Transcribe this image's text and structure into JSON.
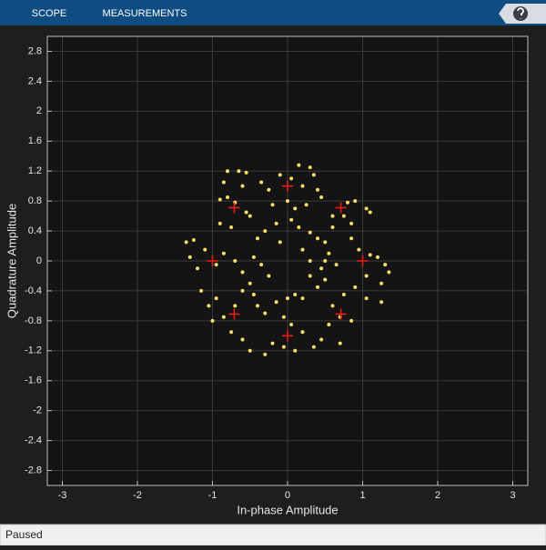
{
  "toolbar": {
    "tabs": [
      "SCOPE",
      "MEASUREMENTS"
    ]
  },
  "status": "Paused",
  "chart_data": {
    "type": "scatter",
    "xlabel": "In-phase Amplitude",
    "ylabel": "Quadrature Amplitude",
    "xlim": [
      -3.2,
      3.2
    ],
    "ylim": [
      -3,
      3
    ],
    "xticks": [
      -3,
      -2,
      -1,
      0,
      1,
      2,
      3
    ],
    "yticks": [
      -2.8,
      -2.4,
      -2,
      -1.6,
      -1.2,
      -0.8,
      -0.4,
      0,
      0.4,
      0.8,
      1.2,
      1.6,
      2,
      2.4,
      2.8
    ],
    "grid": true,
    "points": {
      "color": "#ffe066",
      "x": [
        -0.8,
        -0.65,
        -0.55,
        -0.85,
        -0.6,
        -0.9,
        -0.8,
        -0.7,
        -0.55,
        -0.9,
        -0.75,
        -0.35,
        -0.25,
        -0.1,
        0.05,
        0.15,
        0.3,
        0.35,
        0.2,
        0.4,
        0.45,
        0.25,
        0.1,
        0.05,
        0.15,
        0.3,
        0.4,
        0.5,
        0.55,
        0.5,
        0.45,
        0.5,
        0.4,
        0.6,
        0.75,
        0.8,
        0.9,
        1.05,
        1.1,
        0.85,
        0.85,
        0.95,
        1.1,
        1.2,
        1.3,
        1.35,
        1.05,
        1.25,
        0.9,
        0.75,
        1.05,
        1.25,
        0.6,
        0.7,
        0.85,
        0.55,
        0.45,
        0.7,
        0.35,
        0.2,
        0.1,
        -0.05,
        -0.2,
        -0.3,
        -0.5,
        -0.6,
        -0.75,
        -0.85,
        -1.0,
        -1.05,
        -0.95,
        -1.15,
        -1.2,
        -1.3,
        -1.35,
        -1.25,
        -1.1,
        -0.95,
        -0.85,
        -0.7,
        -0.6,
        -0.5,
        -0.45,
        -0.4,
        -0.3,
        -0.15,
        0.0,
        0.1,
        0.2,
        -0.05,
        0.05,
        -0.45,
        -0.4,
        -0.3,
        -0.15,
        0.0,
        -0.1,
        -0.5,
        -0.2,
        0.3,
        0.3,
        0.2,
        -0.25,
        -0.35,
        -0.6,
        -0.7,
        0.6,
        0.65
      ],
      "y": [
        1.2,
        1.2,
        1.18,
        1.05,
        1.0,
        0.82,
        0.85,
        0.78,
        0.65,
        0.5,
        0.45,
        1.05,
        0.95,
        1.15,
        1.1,
        1.28,
        1.25,
        1.15,
        1.0,
        0.95,
        0.85,
        0.75,
        0.7,
        0.55,
        0.45,
        0.38,
        0.3,
        0.25,
        0.1,
        0.0,
        -0.1,
        -0.25,
        -0.35,
        0.6,
        0.6,
        0.78,
        0.8,
        0.7,
        0.65,
        0.5,
        0.3,
        0.15,
        0.08,
        0.05,
        -0.05,
        -0.15,
        -0.2,
        -0.3,
        -0.35,
        -0.45,
        -0.5,
        -0.55,
        -0.6,
        -0.75,
        -0.8,
        -0.85,
        -1.05,
        -1.1,
        -1.15,
        -0.95,
        -1.2,
        -1.15,
        -1.1,
        -1.25,
        -1.2,
        -1.05,
        -0.95,
        -0.75,
        -0.8,
        -0.6,
        -0.5,
        -0.4,
        -0.1,
        0.05,
        0.25,
        0.28,
        0.15,
        -0.05,
        0.1,
        0.0,
        -0.15,
        -0.3,
        -0.45,
        -0.6,
        -0.7,
        -0.55,
        -0.5,
        -0.45,
        -0.5,
        -0.75,
        -0.85,
        0.05,
        0.3,
        0.4,
        0.5,
        0.8,
        0.25,
        0.6,
        0.75,
        0.0,
        -0.2,
        0.15,
        -0.2,
        -0.05,
        -0.4,
        -0.6,
        0.45,
        -0.05
      ]
    },
    "reference": {
      "color": "#ff1a1a",
      "x": [
        1,
        0.71,
        0,
        -0.71,
        -1,
        -0.71,
        0,
        0.71
      ],
      "y": [
        0,
        0.71,
        1,
        0.71,
        0,
        -0.71,
        -1,
        -0.71
      ]
    }
  }
}
